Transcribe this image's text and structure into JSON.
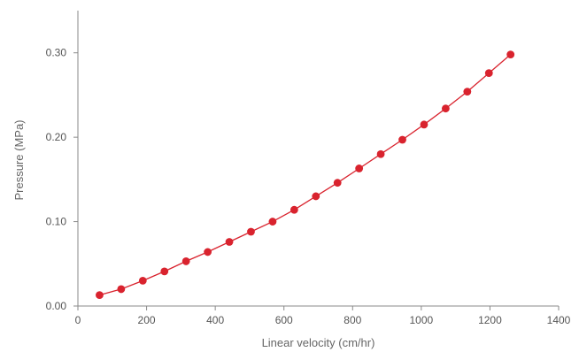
{
  "chart_data": {
    "type": "scatter",
    "title": "",
    "xlabel": "Linear velocity (cm/hr)",
    "ylabel": "Pressure (MPa)",
    "xlim": [
      0,
      1400
    ],
    "ylim": [
      0,
      0.35
    ],
    "xticks": [
      0,
      200,
      400,
      600,
      800,
      1000,
      1200,
      1400
    ],
    "xtick_labels": [
      "0",
      "200",
      "400",
      "600",
      "800",
      "1000",
      "1200",
      "1400"
    ],
    "yticks": [
      0,
      0.1,
      0.2,
      0.3
    ],
    "ytick_labels": [
      "0.00",
      "0.10",
      "0.20",
      "0.30"
    ],
    "grid": false,
    "legend": false,
    "series": [
      {
        "color": "#d9232e",
        "connected": true,
        "marker": "circle",
        "x": [
          63,
          126,
          189,
          252,
          315,
          378,
          441,
          504,
          567,
          630,
          693,
          756,
          819,
          882,
          945,
          1008,
          1071,
          1134,
          1197,
          1260
        ],
        "y": [
          0.013,
          0.02,
          0.03,
          0.041,
          0.053,
          0.064,
          0.076,
          0.088,
          0.1,
          0.114,
          0.13,
          0.146,
          0.163,
          0.18,
          0.197,
          0.215,
          0.234,
          0.254,
          0.276,
          0.298
        ]
      }
    ]
  }
}
